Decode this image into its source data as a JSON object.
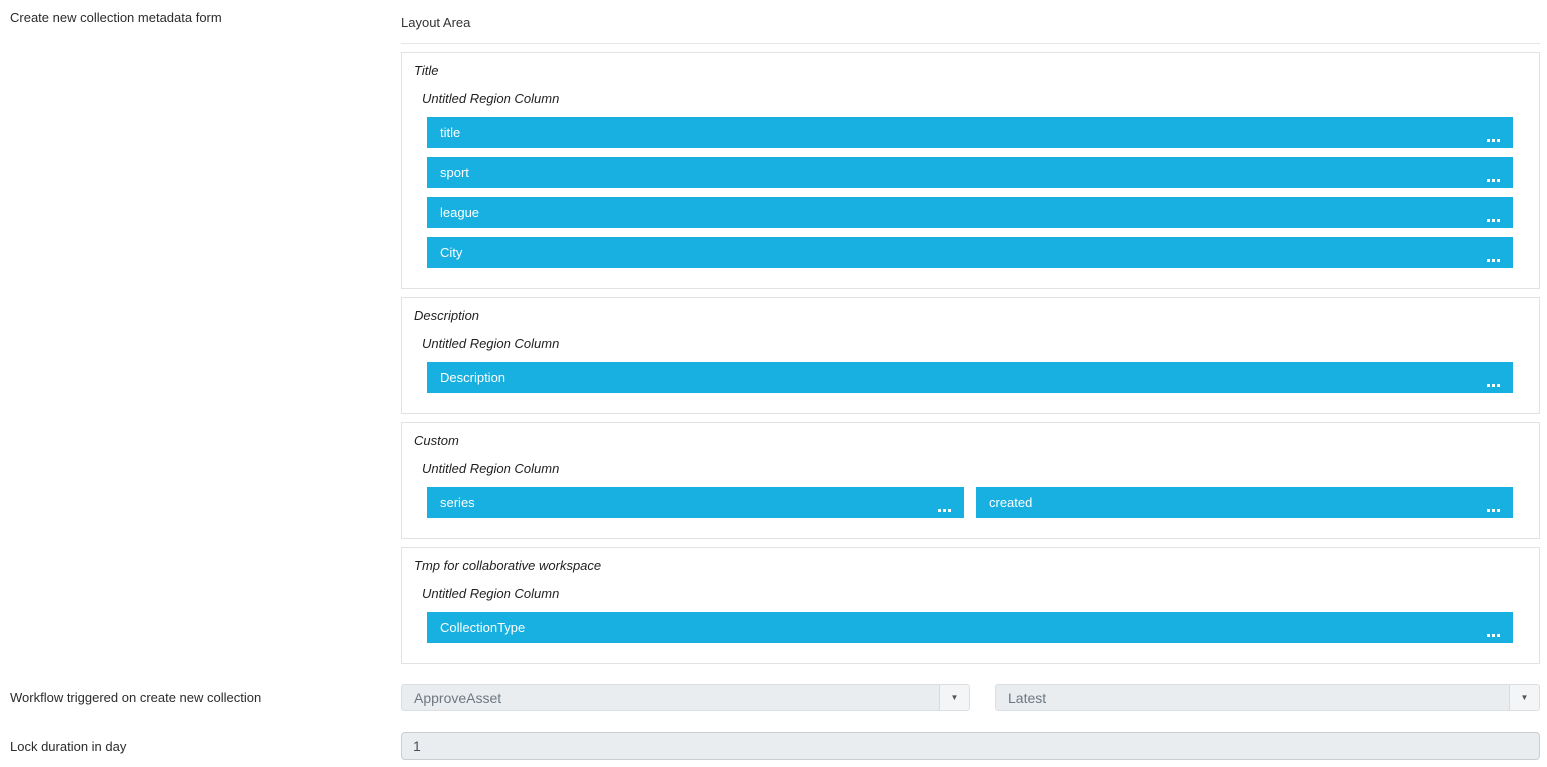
{
  "form": {
    "create_label": "Create new collection metadata form",
    "layout_area_title": "Layout Area"
  },
  "sections": [
    {
      "title": "Title",
      "region_label": "Untitled Region Column",
      "fields": [
        "title",
        "sport",
        "league",
        "City"
      ]
    },
    {
      "title": "Description",
      "region_label": "Untitled Region Column",
      "fields": [
        "Description"
      ]
    },
    {
      "title": "Custom",
      "region_label": "Untitled Region Column",
      "fields": [
        "series",
        "created"
      ]
    },
    {
      "title": "Tmp for collaborative workspace",
      "region_label": "Untitled Region Column",
      "fields": [
        "CollectionType"
      ]
    }
  ],
  "workflow_row": {
    "label": "Workflow triggered on create new collection",
    "workflow_select": {
      "value": "ApproveAsset"
    },
    "version_select": {
      "value": "Latest"
    }
  },
  "lock_row": {
    "label": "Lock duration in day",
    "input_value": "1"
  },
  "icons": {
    "field_options": "ellipsis-icon",
    "dropdown_arrow": "chevron-down-icon"
  },
  "colors": {
    "field_bar_blue": "#17B0E0",
    "field_bar_text": "#FFFFFF",
    "section_border": "#E2E2E2",
    "control_bg": "#E9EDF0",
    "control_border": "#C9CED3",
    "control_text": "#6D7780",
    "label_text": "#2B2B2B"
  }
}
